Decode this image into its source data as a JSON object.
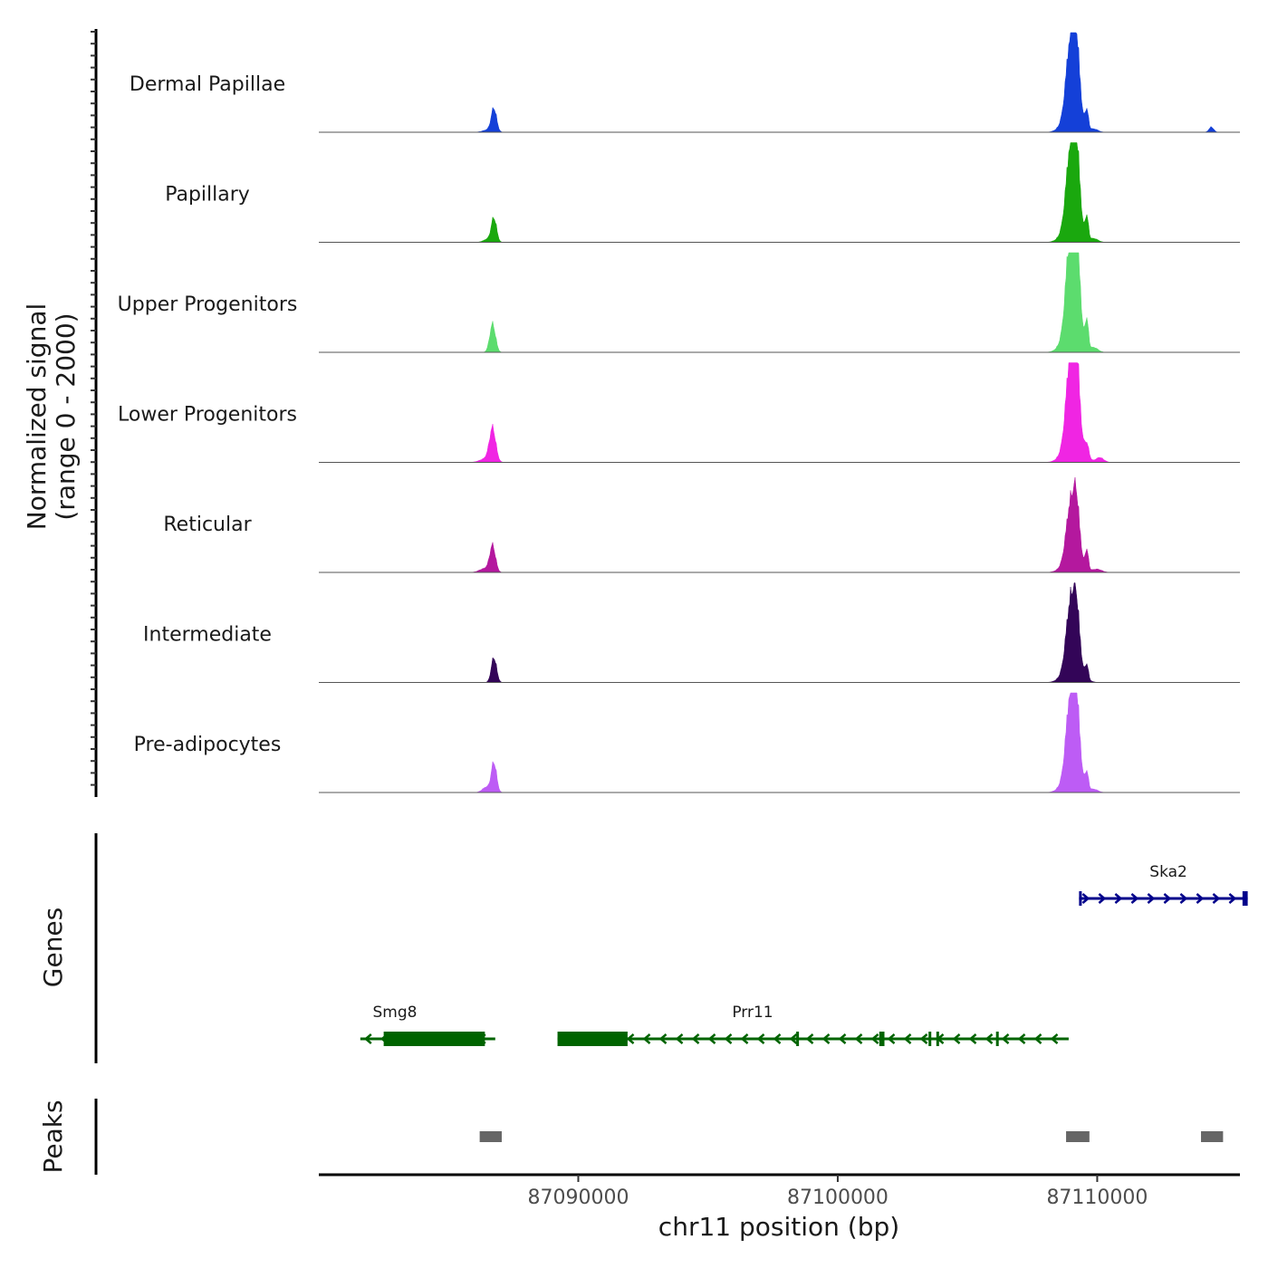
{
  "chart_data": {
    "type": "area",
    "region": {
      "chromosome": "chr11",
      "start": 87080000,
      "end": 87115500
    },
    "ylabel": [
      "Normalized signal",
      "(range 0 - 2000)"
    ],
    "ylim": [
      0,
      2000
    ],
    "xlabel": "chr11 position (bp)",
    "x_ticks": [
      87090000,
      87100000,
      87110000
    ],
    "x_tick_labels": [
      "87090000",
      "87100000",
      "87110000"
    ],
    "tracks": [
      {
        "name": "Dermal Papillae",
        "color": "#1440d8",
        "peaks": [
          {
            "center": 87086750,
            "width": 100,
            "height": 520
          },
          {
            "center": 87086550,
            "width": 200,
            "height": 60
          },
          {
            "center": 87108950,
            "width": 150,
            "height": 1350
          },
          {
            "center": 87109200,
            "width": 120,
            "height": 1450
          },
          {
            "center": 87109050,
            "width": 300,
            "height": 700
          },
          {
            "center": 87109600,
            "width": 60,
            "height": 400
          },
          {
            "center": 87109900,
            "width": 150,
            "height": 60
          },
          {
            "center": 87114400,
            "width": 90,
            "height": 120
          }
        ]
      },
      {
        "name": "Papillary",
        "color": "#1aa80e",
        "peaks": [
          {
            "center": 87086750,
            "width": 100,
            "height": 550
          },
          {
            "center": 87086500,
            "width": 150,
            "height": 70
          },
          {
            "center": 87108950,
            "width": 150,
            "height": 1400
          },
          {
            "center": 87109200,
            "width": 120,
            "height": 1620
          },
          {
            "center": 87109050,
            "width": 300,
            "height": 700
          },
          {
            "center": 87109600,
            "width": 60,
            "height": 480
          },
          {
            "center": 87109900,
            "width": 150,
            "height": 70
          }
        ]
      },
      {
        "name": "Upper Progenitors",
        "color": "#5cdc6e",
        "peaks": [
          {
            "center": 87086700,
            "width": 110,
            "height": 640
          },
          {
            "center": 87108950,
            "width": 150,
            "height": 1780
          },
          {
            "center": 87109200,
            "width": 120,
            "height": 1970
          },
          {
            "center": 87109050,
            "width": 300,
            "height": 900
          },
          {
            "center": 87109600,
            "width": 60,
            "height": 600
          },
          {
            "center": 87109900,
            "width": 150,
            "height": 90
          }
        ]
      },
      {
        "name": "Lower Progenitors",
        "color": "#f025e3",
        "peaks": [
          {
            "center": 87086700,
            "width": 120,
            "height": 740
          },
          {
            "center": 87086450,
            "width": 220,
            "height": 90
          },
          {
            "center": 87108950,
            "width": 150,
            "height": 1560
          },
          {
            "center": 87109200,
            "width": 120,
            "height": 1700
          },
          {
            "center": 87109050,
            "width": 300,
            "height": 800
          },
          {
            "center": 87109600,
            "width": 80,
            "height": 300
          },
          {
            "center": 87110100,
            "width": 150,
            "height": 110
          }
        ]
      },
      {
        "name": "Reticular",
        "color": "#b4189e",
        "peaks": [
          {
            "center": 87086700,
            "width": 110,
            "height": 590
          },
          {
            "center": 87086400,
            "width": 200,
            "height": 90
          },
          {
            "center": 87108950,
            "width": 150,
            "height": 1000
          },
          {
            "center": 87109200,
            "width": 120,
            "height": 1180
          },
          {
            "center": 87109050,
            "width": 300,
            "height": 500
          },
          {
            "center": 87109600,
            "width": 60,
            "height": 430
          },
          {
            "center": 87110000,
            "width": 180,
            "height": 70
          }
        ]
      },
      {
        "name": "Intermediate",
        "color": "#330558",
        "peaks": [
          {
            "center": 87086750,
            "width": 100,
            "height": 570
          },
          {
            "center": 87108950,
            "width": 150,
            "height": 1170
          },
          {
            "center": 87109200,
            "width": 120,
            "height": 1230
          },
          {
            "center": 87109050,
            "width": 300,
            "height": 600
          },
          {
            "center": 87109600,
            "width": 60,
            "height": 310
          }
        ]
      },
      {
        "name": "Pre-adipocytes",
        "color": "#bd5cf5",
        "peaks": [
          {
            "center": 87086750,
            "width": 100,
            "height": 680
          },
          {
            "center": 87086450,
            "width": 150,
            "height": 120
          },
          {
            "center": 87108950,
            "width": 150,
            "height": 1480
          },
          {
            "center": 87109200,
            "width": 120,
            "height": 1510
          },
          {
            "center": 87109050,
            "width": 300,
            "height": 700
          },
          {
            "center": 87109600,
            "width": 60,
            "height": 360
          },
          {
            "center": 87109900,
            "width": 150,
            "height": 60
          }
        ]
      }
    ],
    "genes_track": {
      "label": "Genes",
      "genes": [
        {
          "name": "Ska2",
          "strand": "+",
          "start": 87109300,
          "end": 87115800,
          "color": "#00008b",
          "exons": [
            [
              87109300,
              87109400
            ],
            [
              87115600,
              87115800
            ]
          ]
        },
        {
          "name": "Smg8",
          "strand": "-",
          "start": 87081600,
          "end": 87086800,
          "color": "#006400",
          "exons": [
            [
              87082500,
              87086400
            ]
          ]
        },
        {
          "name": "Prr11",
          "strand": "-",
          "start": 87089200,
          "end": 87108900,
          "color": "#006400",
          "exons": [
            [
              87089200,
              87091900
            ],
            [
              87098400,
              87098500
            ],
            [
              87101600,
              87101800
            ],
            [
              87103500,
              87103600
            ],
            [
              87103800,
              87103900
            ],
            [
              87106100,
              87106200
            ]
          ]
        }
      ]
    },
    "peaks_track": {
      "label": "Peaks",
      "color": "#666666",
      "regions": [
        [
          87086200,
          87087050
        ],
        [
          87108800,
          87109700
        ],
        [
          87114000,
          87114850
        ]
      ]
    }
  }
}
